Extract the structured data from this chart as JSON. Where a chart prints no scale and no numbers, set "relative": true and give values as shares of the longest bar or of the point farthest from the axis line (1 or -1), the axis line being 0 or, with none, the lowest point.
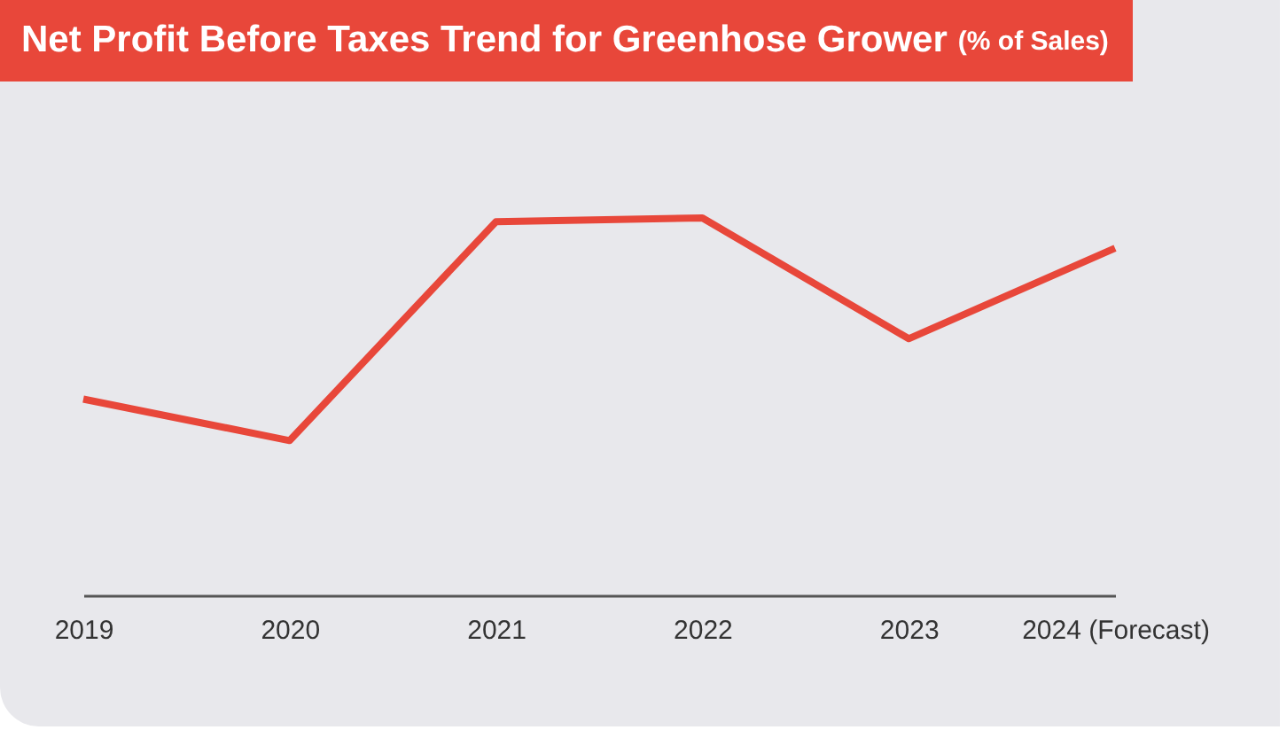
{
  "chart_data": {
    "type": "line",
    "title": "Net Profit Before Taxes Trend for Greenhose Grower",
    "subtitle": "(% of Sales)",
    "categories": [
      "2019",
      "2020",
      "2021",
      "2022",
      "2023",
      "2024 (Forecast)"
    ],
    "values": [
      0.52,
      0.41,
      0.99,
      1,
      0.68,
      0.92
    ],
    "color": "#e8473a",
    "relative": true
  }
}
